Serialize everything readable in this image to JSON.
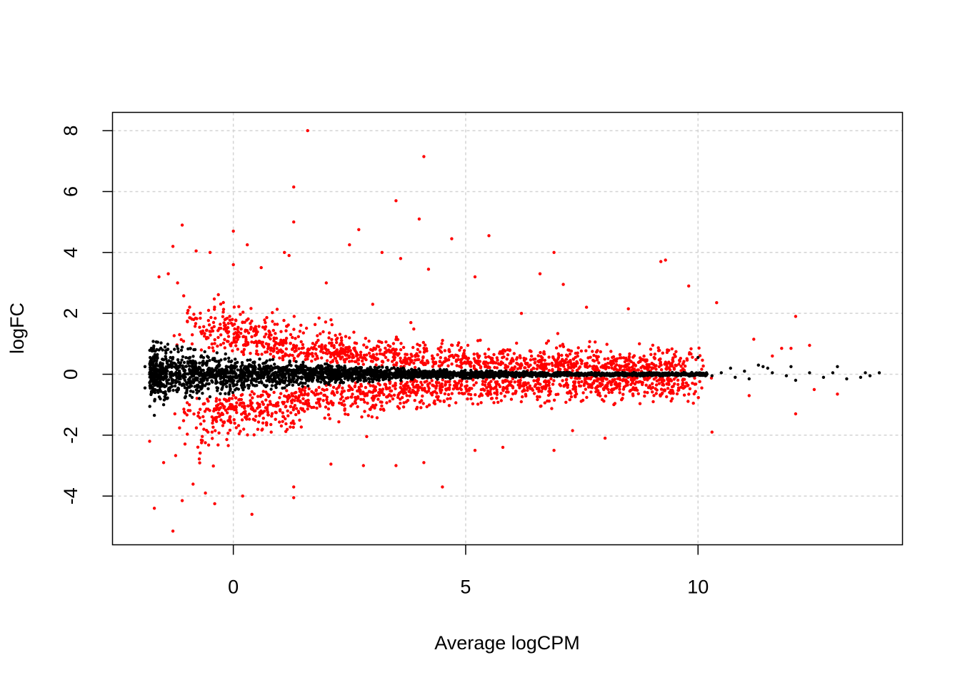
{
  "chart_data": {
    "type": "scatter",
    "title": "",
    "xlabel": "Average logCPM",
    "ylabel": "logFC",
    "xlim": [
      -2.6,
      14.4
    ],
    "ylim": [
      -5.6,
      8.6
    ],
    "xticks": [
      0,
      5,
      10
    ],
    "yticks": [
      -4,
      -2,
      0,
      2,
      4,
      6,
      8
    ],
    "grid": true,
    "legend": "none",
    "colors": {
      "significant": "#ff0000",
      "not_significant": "#000000"
    },
    "series": [
      {
        "key": "significant",
        "color": "#ff0000",
        "points": [
          [
            1.6,
            8.0
          ],
          [
            4.1,
            7.15
          ],
          [
            1.3,
            6.15
          ],
          [
            3.5,
            5.7
          ],
          [
            4.0,
            5.1
          ],
          [
            1.3,
            5.0
          ],
          [
            -1.1,
            4.9
          ],
          [
            0.0,
            4.7
          ],
          [
            2.7,
            4.75
          ],
          [
            5.5,
            4.55
          ],
          [
            4.7,
            4.45
          ],
          [
            2.5,
            4.25
          ],
          [
            0.3,
            4.25
          ],
          [
            -1.3,
            4.2
          ],
          [
            -0.8,
            4.05
          ],
          [
            -0.5,
            4.0
          ],
          [
            1.1,
            4.0
          ],
          [
            3.2,
            4.0
          ],
          [
            6.9,
            4.0
          ],
          [
            1.2,
            3.9
          ],
          [
            3.6,
            3.8
          ],
          [
            9.3,
            3.75
          ],
          [
            9.2,
            3.7
          ],
          [
            0.0,
            3.6
          ],
          [
            0.6,
            3.5
          ],
          [
            4.2,
            3.45
          ],
          [
            5.2,
            3.2
          ],
          [
            6.6,
            3.3
          ],
          [
            7.1,
            2.95
          ],
          [
            9.8,
            2.9
          ],
          [
            10.4,
            2.35
          ],
          [
            12.1,
            1.9
          ],
          [
            11.2,
            1.15
          ],
          [
            12.4,
            0.95
          ],
          [
            11.8,
            0.85
          ],
          [
            12.0,
            0.85
          ],
          [
            11.6,
            0.6
          ],
          [
            -1.6,
            3.2
          ],
          [
            -1.4,
            3.3
          ],
          [
            -1.2,
            3.0
          ],
          [
            2.0,
            3.0
          ],
          [
            7.6,
            2.2
          ],
          [
            8.5,
            2.15
          ],
          [
            6.2,
            2.0
          ],
          [
            3.0,
            2.3
          ],
          [
            -1.7,
            -4.4
          ],
          [
            -1.3,
            -5.15
          ],
          [
            0.4,
            -4.6
          ],
          [
            1.3,
            -4.05
          ],
          [
            4.5,
            -3.7
          ],
          [
            -0.4,
            -4.25
          ],
          [
            0.2,
            -4.0
          ],
          [
            -0.6,
            -3.9
          ],
          [
            -1.1,
            -4.15
          ],
          [
            3.5,
            -3.0
          ],
          [
            6.9,
            -2.5
          ],
          [
            8.0,
            -2.1
          ],
          [
            10.3,
            -1.9
          ],
          [
            12.1,
            -1.3
          ],
          [
            13.0,
            -0.65
          ],
          [
            12.5,
            -0.5
          ],
          [
            11.1,
            -0.7
          ],
          [
            9.9,
            -0.95
          ],
          [
            -1.8,
            -2.2
          ],
          [
            -1.5,
            -2.9
          ],
          [
            1.3,
            -3.7
          ],
          [
            2.1,
            -2.95
          ],
          [
            5.2,
            -2.5
          ],
          [
            5.8,
            -2.4
          ],
          [
            7.3,
            -1.85
          ],
          [
            4.1,
            -2.9
          ],
          [
            2.8,
            -3.0
          ]
        ],
        "cloud": {
          "x_range": [
            -1.3,
            13.2
          ],
          "n": 2400
        }
      },
      {
        "key": "not_significant",
        "color": "#000000",
        "points": [
          [
            -1.9,
            0.25
          ],
          [
            -1.9,
            -0.45
          ],
          [
            -1.7,
            0.55
          ],
          [
            -1.7,
            -1.35
          ],
          [
            -1.6,
            0.8
          ],
          [
            -1.5,
            -1.0
          ],
          [
            -1.8,
            0.0
          ],
          [
            10.0,
            0.55
          ],
          [
            10.7,
            0.2
          ],
          [
            11.0,
            0.1
          ],
          [
            11.4,
            0.25
          ],
          [
            11.5,
            0.2
          ],
          [
            11.6,
            0.05
          ],
          [
            11.9,
            -0.05
          ],
          [
            12.0,
            0.25
          ],
          [
            12.1,
            -0.2
          ],
          [
            12.4,
            0.05
          ],
          [
            12.7,
            -0.1
          ],
          [
            12.9,
            0.05
          ],
          [
            13.0,
            0.25
          ],
          [
            13.2,
            -0.15
          ],
          [
            13.5,
            -0.1
          ],
          [
            13.6,
            0.05
          ],
          [
            13.7,
            -0.05
          ],
          [
            13.9,
            0.05
          ],
          [
            10.3,
            -0.05
          ],
          [
            10.5,
            0.05
          ],
          [
            10.8,
            -0.1
          ],
          [
            11.1,
            -0.15
          ],
          [
            11.3,
            0.3
          ]
        ],
        "cloud": {
          "x_range": [
            -1.8,
            10.2
          ],
          "n": 3200
        }
      }
    ]
  }
}
